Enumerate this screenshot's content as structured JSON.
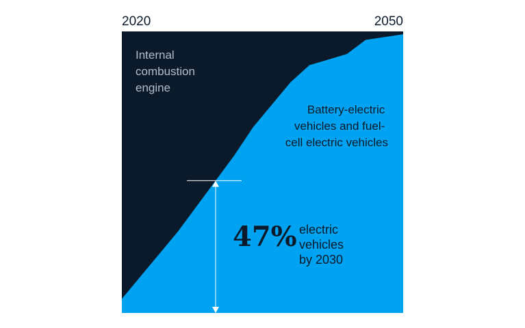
{
  "chart_data": {
    "type": "area",
    "x_start_label": "2020",
    "x_end_label": "2050",
    "x": [
      2020,
      2022,
      2024,
      2026,
      2028,
      2030,
      2032,
      2034,
      2036,
      2038,
      2040,
      2042,
      2044,
      2046,
      2048,
      2050
    ],
    "series": [
      {
        "name": "Battery-electric vehicles and fuel-cell electric vehicles",
        "share_percent": [
          5,
          13,
          21,
          29,
          38,
          47,
          56,
          66,
          74,
          82,
          88,
          90,
          92,
          97,
          98,
          99
        ],
        "color": "#00a3f1"
      },
      {
        "name": "Internal combustion engine",
        "share_percent": [
          95,
          87,
          79,
          71,
          62,
          53,
          44,
          34,
          26,
          18,
          12,
          10,
          8,
          3,
          2,
          1
        ],
        "color": "#0b1a2b"
      }
    ],
    "ylim": [
      0,
      100
    ],
    "grid": false,
    "annotation": {
      "x": 2030,
      "value": "47%",
      "text_lines": [
        "electric",
        "vehicles",
        "by 2030"
      ]
    }
  },
  "colors": {
    "ice": "#0b1a2b",
    "ev": "#00a3f1",
    "ice_label": "#b3bec9",
    "ev_label": "#0b1a2b",
    "annotation_line": "#ffffff"
  }
}
